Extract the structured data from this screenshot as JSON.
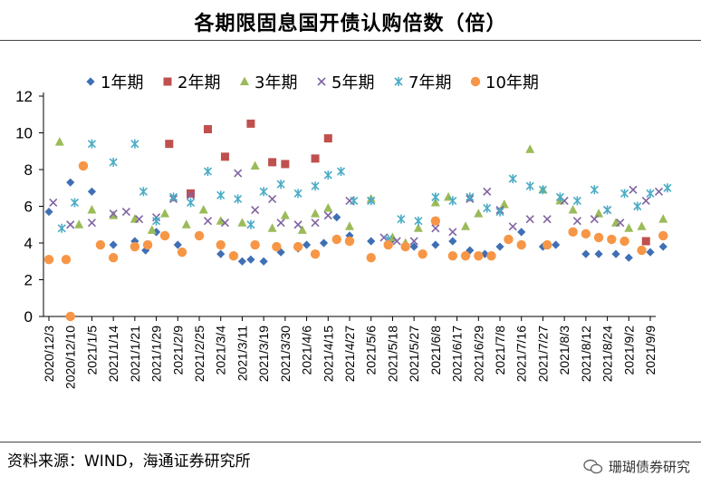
{
  "chart_data": {
    "type": "scatter",
    "title": "各期限固息国开债认购倍数（倍）",
    "xlabel": "",
    "ylabel": "",
    "ylim": [
      0,
      12
    ],
    "yticks": [
      0,
      2,
      4,
      6,
      8,
      10,
      12
    ],
    "grid": false,
    "legend_position": "top",
    "categories": [
      "2020/12/3",
      "2020/12/10",
      "2021/1/5",
      "2021/1/14",
      "2021/1/21",
      "2021/1/29",
      "2021/2/9",
      "2021/2/25",
      "2021/3/4",
      "2021/3/11",
      "2021/3/19",
      "2021/3/30",
      "2021/4/6",
      "2021/4/15",
      "2021/4/27",
      "2021/5/6",
      "2021/5/18",
      "2021/5/27",
      "2021/6/8",
      "2021/6/17",
      "2021/6/29",
      "2021/7/8",
      "2021/7/16",
      "2021/7/27",
      "2021/8/3",
      "2021/8/12",
      "2021/8/24",
      "2021/9/2",
      "2021/9/9"
    ],
    "series": [
      {
        "name": "1年期",
        "marker": "diamond",
        "color": "#3f6fb5",
        "points": [
          [
            0,
            5.7
          ],
          [
            1,
            7.3
          ],
          [
            2,
            6.8
          ],
          [
            3,
            3.9
          ],
          [
            4,
            4.1
          ],
          [
            4.5,
            3.6
          ],
          [
            5,
            4.6
          ],
          [
            6,
            3.9
          ],
          [
            7,
            4.4
          ],
          [
            8,
            3.4
          ],
          [
            9,
            3.0
          ],
          [
            9.4,
            3.1
          ],
          [
            10,
            3.0
          ],
          [
            10.8,
            3.5
          ],
          [
            11.6,
            3.7
          ],
          [
            12,
            3.9
          ],
          [
            12.8,
            4.0
          ],
          [
            13.4,
            5.4
          ],
          [
            14,
            4.4
          ],
          [
            15,
            4.1
          ],
          [
            16,
            4.2
          ],
          [
            17,
            3.8
          ],
          [
            18,
            3.9
          ],
          [
            18.8,
            4.1
          ],
          [
            19.6,
            3.6
          ],
          [
            20.3,
            3.4
          ],
          [
            21,
            3.8
          ],
          [
            22,
            4.6
          ],
          [
            23,
            3.8
          ],
          [
            23.6,
            3.9
          ],
          [
            25,
            3.4
          ],
          [
            25.6,
            3.4
          ],
          [
            26.4,
            3.4
          ],
          [
            27,
            3.2
          ],
          [
            28,
            3.5
          ],
          [
            28.6,
            3.8
          ]
        ]
      },
      {
        "name": "2年期",
        "marker": "square",
        "color": "#c0504d",
        "points": [
          [
            5.6,
            9.4
          ],
          [
            6.6,
            6.7
          ],
          [
            7.4,
            10.2
          ],
          [
            8.2,
            8.7
          ],
          [
            9.4,
            10.5
          ],
          [
            10.4,
            8.4
          ],
          [
            11,
            8.3
          ],
          [
            12.4,
            8.6
          ],
          [
            13,
            9.7
          ],
          [
            27.8,
            4.1
          ]
        ]
      },
      {
        "name": "3年期",
        "marker": "triangle",
        "color": "#9bbb59",
        "points": [
          [
            0.5,
            9.5
          ],
          [
            1.4,
            5.0
          ],
          [
            2,
            5.8
          ],
          [
            3,
            5.5
          ],
          [
            4,
            5.3
          ],
          [
            4.8,
            4.7
          ],
          [
            5.4,
            5.6
          ],
          [
            6.4,
            5.0
          ],
          [
            7.2,
            5.8
          ],
          [
            8,
            5.2
          ],
          [
            9,
            5.1
          ],
          [
            9.6,
            8.2
          ],
          [
            10.4,
            4.8
          ],
          [
            11,
            5.5
          ],
          [
            11.8,
            4.7
          ],
          [
            12.4,
            5.6
          ],
          [
            13,
            5.9
          ],
          [
            14,
            4.9
          ],
          [
            15,
            6.4
          ],
          [
            16,
            4.3
          ],
          [
            16.6,
            4.0
          ],
          [
            17.2,
            4.8
          ],
          [
            18,
            6.2
          ],
          [
            18.6,
            6.5
          ],
          [
            19.4,
            4.9
          ],
          [
            20,
            5.6
          ],
          [
            21.2,
            6.1
          ],
          [
            22.4,
            9.1
          ],
          [
            23,
            6.9
          ],
          [
            23.8,
            6.3
          ],
          [
            24.4,
            5.8
          ],
          [
            25.6,
            5.6
          ],
          [
            26.4,
            5.1
          ],
          [
            27,
            4.8
          ],
          [
            27.6,
            4.9
          ],
          [
            28.6,
            5.3
          ]
        ]
      },
      {
        "name": "5年期",
        "marker": "x",
        "color": "#8064a2",
        "points": [
          [
            0.2,
            6.2
          ],
          [
            1,
            5.0
          ],
          [
            2,
            5.1
          ],
          [
            3,
            5.6
          ],
          [
            3.6,
            5.7
          ],
          [
            4.2,
            5.3
          ],
          [
            5,
            5.4
          ],
          [
            5.8,
            6.4
          ],
          [
            6.6,
            6.6
          ],
          [
            7.4,
            5.2
          ],
          [
            8.2,
            5.1
          ],
          [
            8.8,
            7.8
          ],
          [
            9.6,
            5.8
          ],
          [
            10.4,
            6.4
          ],
          [
            10.8,
            5.1
          ],
          [
            11.6,
            5.0
          ],
          [
            12.4,
            5.1
          ],
          [
            13,
            5.5
          ],
          [
            14,
            6.3
          ],
          [
            15,
            6.3
          ],
          [
            15.6,
            4.3
          ],
          [
            16.2,
            4.1
          ],
          [
            17,
            4.1
          ],
          [
            18,
            4.8
          ],
          [
            18.8,
            4.6
          ],
          [
            19.6,
            6.4
          ],
          [
            20.4,
            6.8
          ],
          [
            21,
            5.8
          ],
          [
            21.6,
            4.9
          ],
          [
            22.4,
            5.3
          ],
          [
            23.2,
            5.3
          ],
          [
            24,
            6.3
          ],
          [
            24.6,
            5.2
          ],
          [
            25.4,
            5.3
          ],
          [
            26,
            5.8
          ],
          [
            26.6,
            5.1
          ],
          [
            27.2,
            6.9
          ],
          [
            27.8,
            6.3
          ],
          [
            28.4,
            6.8
          ]
        ]
      },
      {
        "name": "7年期",
        "marker": "star",
        "color": "#4bacc6",
        "points": [
          [
            0.6,
            4.8
          ],
          [
            1.2,
            6.2
          ],
          [
            2,
            9.4
          ],
          [
            3,
            8.4
          ],
          [
            4,
            9.4
          ],
          [
            4.4,
            6.8
          ],
          [
            5,
            5.2
          ],
          [
            5.8,
            6.5
          ],
          [
            6.6,
            6.2
          ],
          [
            7.4,
            7.9
          ],
          [
            8,
            6.6
          ],
          [
            8.8,
            6.4
          ],
          [
            9.4,
            5.0
          ],
          [
            10,
            6.8
          ],
          [
            10.8,
            7.2
          ],
          [
            11.6,
            6.7
          ],
          [
            12.4,
            7.1
          ],
          [
            13,
            7.7
          ],
          [
            13.6,
            7.9
          ],
          [
            14.2,
            6.3
          ],
          [
            15,
            6.3
          ],
          [
            15.8,
            4.2
          ],
          [
            16.4,
            5.3
          ],
          [
            17.2,
            5.2
          ],
          [
            18,
            6.5
          ],
          [
            18.8,
            6.3
          ],
          [
            19.6,
            6.5
          ],
          [
            20.4,
            5.9
          ],
          [
            21,
            5.7
          ],
          [
            21.6,
            7.5
          ],
          [
            22.4,
            7.1
          ],
          [
            23,
            6.9
          ],
          [
            23.8,
            6.5
          ],
          [
            24.6,
            6.3
          ],
          [
            25.4,
            6.9
          ],
          [
            26,
            5.8
          ],
          [
            26.8,
            6.7
          ],
          [
            27.4,
            6.0
          ],
          [
            28,
            6.7
          ],
          [
            28.8,
            7.0
          ]
        ]
      },
      {
        "name": "10年期",
        "marker": "circle",
        "color": "#f79646",
        "points": [
          [
            0,
            3.1
          ],
          [
            0.8,
            3.1
          ],
          [
            1,
            0.0
          ],
          [
            1.6,
            8.2
          ],
          [
            2.4,
            3.9
          ],
          [
            3,
            3.2
          ],
          [
            4,
            3.8
          ],
          [
            4.6,
            3.9
          ],
          [
            5.4,
            4.4
          ],
          [
            6.2,
            3.5
          ],
          [
            7,
            4.4
          ],
          [
            8,
            3.9
          ],
          [
            8.6,
            3.3
          ],
          [
            9.6,
            3.9
          ],
          [
            10.6,
            3.8
          ],
          [
            11.6,
            3.8
          ],
          [
            12.4,
            3.4
          ],
          [
            13.4,
            4.2
          ],
          [
            14,
            4.1
          ],
          [
            15,
            3.2
          ],
          [
            15.8,
            3.9
          ],
          [
            16.6,
            3.8
          ],
          [
            17.4,
            3.4
          ],
          [
            18,
            5.2
          ],
          [
            18.8,
            3.3
          ],
          [
            19.4,
            3.3
          ],
          [
            20,
            3.3
          ],
          [
            20.6,
            3.3
          ],
          [
            21.4,
            4.2
          ],
          [
            22,
            3.9
          ],
          [
            23.2,
            3.9
          ],
          [
            24.4,
            4.6
          ],
          [
            25,
            4.5
          ],
          [
            25.6,
            4.3
          ],
          [
            26.2,
            4.2
          ],
          [
            26.8,
            4.1
          ],
          [
            27.6,
            3.6
          ],
          [
            28.6,
            4.4
          ]
        ]
      }
    ]
  },
  "footer": {
    "source": "资料来源：WIND，海通证券研究所",
    "watermark": "珊瑚债券研究"
  }
}
